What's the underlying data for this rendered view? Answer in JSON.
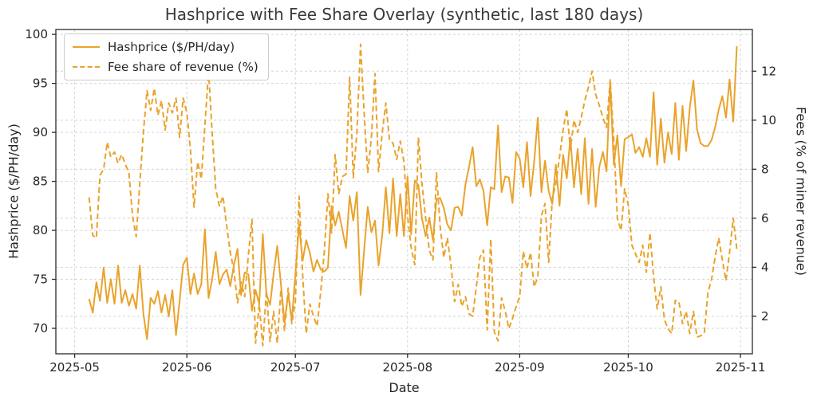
{
  "window_title": "Hashprice with Fee Share Overlay (synthetic, last 180 days)",
  "colors": {
    "line": "#E9A32C",
    "grid": "#d4d4d4",
    "spine": "#2b2b2b",
    "text": "#262626",
    "title_text": "#3a3a3a",
    "legend_border": "#cccccc",
    "background": "#ffffff"
  },
  "chart_data": {
    "type": "line",
    "title": "Hashprice with Fee Share Overlay (synthetic, last 180 days)",
    "xlabel": "Date",
    "ylabel_left": "Hashprice ($/PH/day)",
    "ylabel_right": "Fees (% of miner revenue)",
    "x_start_date": "2025-05-05",
    "x_frequency": "daily",
    "n_points": 180,
    "x_tick_labels": [
      "2025-05",
      "2025-06",
      "2025-07",
      "2025-08",
      "2025-09",
      "2025-10",
      "2025-11"
    ],
    "x_tick_day_offsets": [
      -4,
      27,
      57,
      88,
      119,
      149,
      180
    ],
    "xlim_day_offsets": [
      -9.2,
      183.3
    ],
    "ylim_left": [
      67.4,
      100.5
    ],
    "ylim_right": [
      0.47,
      13.7
    ],
    "yticks_left": [
      70,
      75,
      80,
      85,
      90,
      95,
      100
    ],
    "yticks_right": [
      2,
      4,
      6,
      8,
      10,
      12
    ],
    "grid": true,
    "grid_style": "dashed",
    "legend_position": "upper-left",
    "series": [
      {
        "name": "Hashprice ($/PH/day)",
        "axis": "left",
        "style": "solid",
        "color": "#E9A32C",
        "values": [
          73.0,
          71.6,
          74.7,
          72.8,
          76.2,
          72.6,
          75.0,
          72.5,
          76.4,
          72.6,
          73.9,
          72.3,
          73.5,
          72.0,
          76.4,
          71.5,
          68.9,
          73.1,
          72.5,
          73.8,
          71.6,
          73.4,
          71.2,
          73.9,
          69.3,
          72.8,
          76.5,
          77.2,
          73.5,
          75.6,
          73.5,
          74.5,
          80.1,
          73.1,
          75.0,
          77.8,
          74.5,
          75.5,
          76.0,
          74.3,
          76.4,
          78.1,
          73.4,
          75.7,
          75.5,
          71.8,
          73.9,
          72.5,
          79.6,
          73.5,
          72.4,
          75.6,
          78.4,
          74.5,
          70.6,
          73.5,
          70.8,
          75.5,
          80.6,
          76.9,
          79.0,
          77.7,
          75.8,
          77.0,
          76.0,
          75.8,
          76.2,
          82.5,
          80.5,
          81.9,
          80.0,
          78.2,
          83.5,
          81.0,
          83.9,
          73.4,
          78.0,
          82.4,
          79.8,
          81.0,
          76.4,
          79.5,
          84.4,
          79.7,
          85.3,
          79.4,
          83.7,
          79.4,
          85.5,
          79.6,
          85.1,
          84.6,
          81.2,
          79.4,
          81.3,
          79.0,
          83.2,
          83.3,
          82.3,
          80.6,
          80.0,
          82.3,
          82.4,
          81.5,
          84.7,
          86.5,
          88.5,
          84.5,
          85.2,
          84.0,
          80.5,
          84.4,
          84.2,
          90.7,
          83.9,
          85.5,
          85.4,
          82.8,
          88.0,
          87.3,
          84.4,
          89.0,
          83.5,
          87.0,
          91.5,
          83.9,
          87.1,
          84.0,
          82.7,
          86.7,
          82.5,
          87.7,
          85.3,
          89.5,
          84.4,
          88.3,
          83.7,
          89.4,
          82.7,
          88.3,
          82.4,
          86.5,
          88.0,
          86.0,
          95.2,
          86.7,
          89.7,
          84.5,
          89.3,
          89.5,
          89.8,
          87.9,
          88.5,
          87.5,
          89.4,
          87.5,
          94.1,
          86.7,
          91.4,
          86.9,
          90.0,
          87.8,
          93.0,
          87.2,
          92.7,
          88.1,
          92.5,
          95.3,
          90.3,
          88.9,
          88.6,
          88.6,
          89.2,
          90.5,
          92.3,
          93.7,
          91.5,
          95.4,
          91.1,
          98.8
        ]
      },
      {
        "name": "Fee share of revenue (%)",
        "axis": "right",
        "style": "dashed",
        "color": "#E9A32C",
        "values": [
          6.85,
          5.3,
          5.2,
          7.75,
          8.0,
          9.1,
          8.5,
          8.7,
          8.25,
          8.6,
          8.2,
          7.85,
          6.1,
          5.25,
          7.4,
          9.5,
          11.2,
          10.4,
          11.3,
          10.2,
          10.8,
          9.6,
          10.7,
          10.3,
          10.9,
          9.3,
          10.9,
          10.3,
          8.8,
          6.45,
          8.3,
          7.6,
          9.8,
          12.0,
          9.5,
          7.2,
          6.5,
          6.9,
          5.7,
          4.6,
          3.9,
          2.55,
          3.4,
          2.8,
          4.5,
          5.95,
          0.9,
          2.5,
          0.8,
          3.05,
          0.97,
          2.2,
          0.9,
          3.1,
          1.4,
          3.15,
          1.7,
          2.6,
          6.9,
          3.7,
          1.3,
          2.5,
          2.0,
          1.6,
          3.0,
          4.65,
          7.0,
          5.4,
          8.6,
          7.0,
          7.7,
          7.8,
          11.75,
          7.65,
          9.5,
          13.1,
          10.3,
          7.85,
          9.3,
          11.9,
          7.9,
          9.5,
          10.7,
          9.2,
          9.05,
          8.4,
          9.15,
          8.3,
          6.1,
          4.8,
          4.1,
          9.3,
          7.4,
          6.0,
          4.7,
          4.3,
          7.85,
          5.7,
          4.4,
          5.2,
          4.1,
          2.6,
          3.3,
          2.4,
          2.8,
          2.1,
          2.0,
          3.2,
          4.4,
          4.7,
          1.45,
          5.15,
          1.35,
          1.0,
          2.75,
          2.2,
          1.5,
          1.9,
          2.4,
          2.8,
          4.65,
          3.95,
          4.6,
          3.2,
          3.6,
          6.1,
          6.6,
          4.2,
          6.8,
          7.4,
          8.5,
          9.6,
          10.45,
          8.8,
          10.0,
          9.5,
          10.1,
          10.8,
          11.35,
          12.0,
          11.05,
          10.6,
          10.1,
          9.7,
          11.65,
          9.2,
          6.0,
          5.5,
          7.2,
          6.55,
          4.9,
          4.55,
          4.2,
          4.9,
          3.8,
          5.4,
          3.6,
          2.3,
          3.2,
          1.85,
          1.5,
          1.3,
          2.65,
          2.6,
          1.7,
          2.2,
          1.3,
          2.2,
          1.15,
          1.2,
          1.3,
          2.95,
          3.5,
          4.4,
          5.2,
          4.3,
          3.45,
          4.6,
          6.0,
          4.75
        ]
      }
    ]
  }
}
